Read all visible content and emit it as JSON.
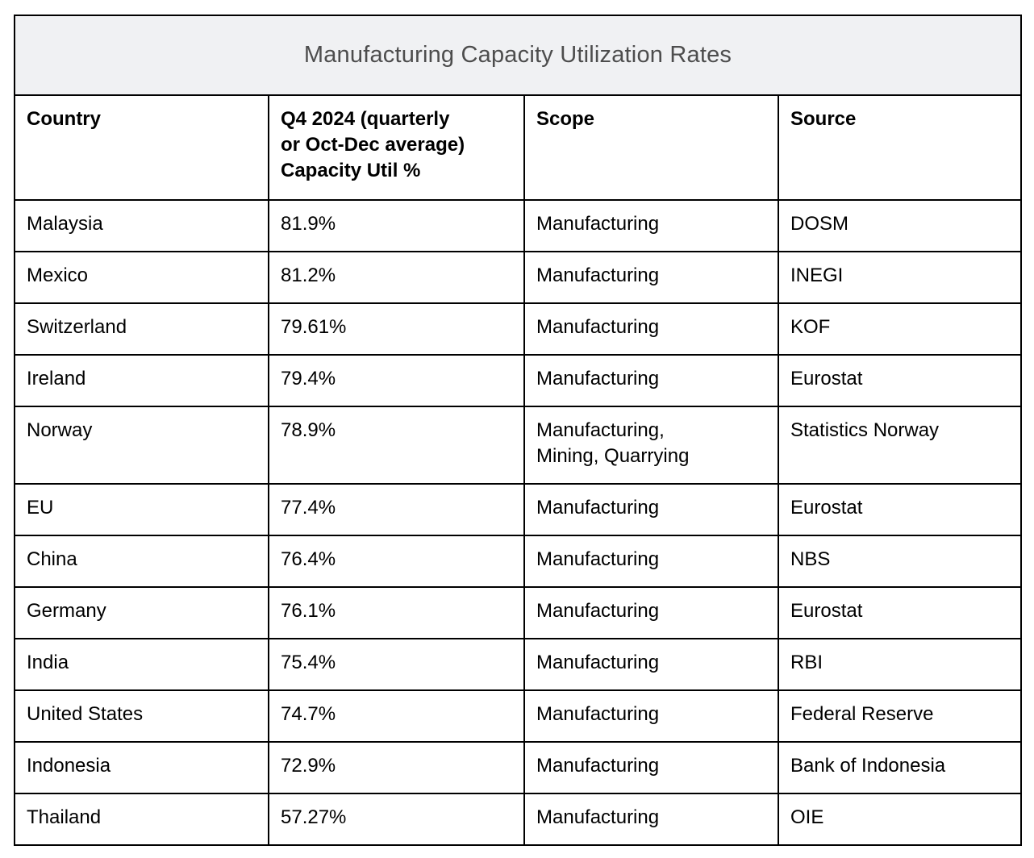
{
  "table": {
    "title": "Manufacturing Capacity Utilization Rates",
    "columns": [
      {
        "key": "country",
        "label": "Country"
      },
      {
        "key": "capacity",
        "label": "Q4 2024 (quarterly\nor Oct-Dec average)\nCapacity Util %"
      },
      {
        "key": "scope",
        "label": "Scope"
      },
      {
        "key": "source",
        "label": "Source"
      }
    ],
    "rows": [
      {
        "country": "Malaysia",
        "capacity": "81.9%",
        "scope": "Manufacturing",
        "source": "DOSM"
      },
      {
        "country": "Mexico",
        "capacity": "81.2%",
        "scope": "Manufacturing",
        "source": "INEGI"
      },
      {
        "country": "Switzerland",
        "capacity": "79.61%",
        "scope": "Manufacturing",
        "source": "KOF"
      },
      {
        "country": "Ireland",
        "capacity": "79.4%",
        "scope": "Manufacturing",
        "source": "Eurostat"
      },
      {
        "country": "Norway",
        "capacity": "78.9%",
        "scope": "Manufacturing,\nMining, Quarrying",
        "source": "Statistics Norway"
      },
      {
        "country": "EU",
        "capacity": "77.4%",
        "scope": "Manufacturing",
        "source": "Eurostat"
      },
      {
        "country": "China",
        "capacity": "76.4%",
        "scope": "Manufacturing",
        "source": "NBS"
      },
      {
        "country": "Germany",
        "capacity": "76.1%",
        "scope": "Manufacturing",
        "source": "Eurostat"
      },
      {
        "country": "India",
        "capacity": "75.4%",
        "scope": "Manufacturing",
        "source": "RBI"
      },
      {
        "country": "United States",
        "capacity": "74.7%",
        "scope": "Manufacturing",
        "source": "Federal Reserve"
      },
      {
        "country": "Indonesia",
        "capacity": "72.9%",
        "scope": "Manufacturing",
        "source": "Bank of Indonesia"
      },
      {
        "country": "Thailand",
        "capacity": "57.27%",
        "scope": "Manufacturing",
        "source": "OIE"
      }
    ]
  },
  "colors": {
    "title_background": "#f0f1f3",
    "title_text": "#4d4d4d",
    "border": "#000000",
    "cell_text": "#000000",
    "page_background": "#ffffff"
  }
}
